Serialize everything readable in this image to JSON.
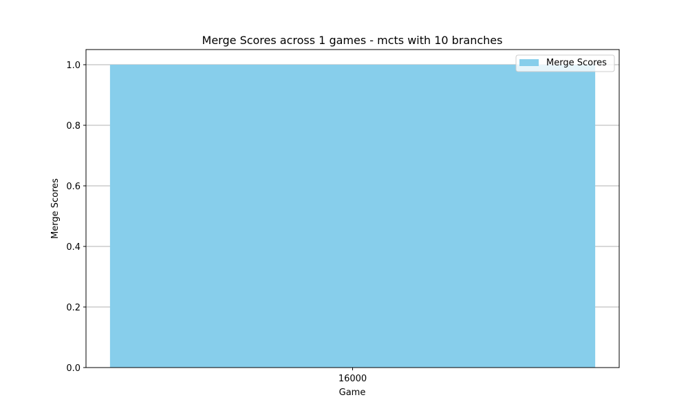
{
  "colors": {
    "bar": "#87CEEB",
    "grid": "#b0b0b0",
    "axis": "#000000",
    "legend_border": "#cccccc"
  },
  "chart_data": {
    "type": "bar",
    "title": "Merge Scores across 1 games - mcts with 10 branches",
    "xlabel": "Game",
    "ylabel": "Merge Scores",
    "categories": [
      "16000"
    ],
    "series": [
      {
        "name": "Merge Scores",
        "values": [
          1.0
        ]
      }
    ],
    "ylim": [
      0,
      1.05
    ],
    "yticks": [
      0.0,
      0.2,
      0.4,
      0.6,
      0.8,
      1.0
    ],
    "ytick_labels": [
      "0.0",
      "0.2",
      "0.4",
      "0.6",
      "0.8",
      "1.0"
    ],
    "grid": "y",
    "legend": "top-right"
  }
}
